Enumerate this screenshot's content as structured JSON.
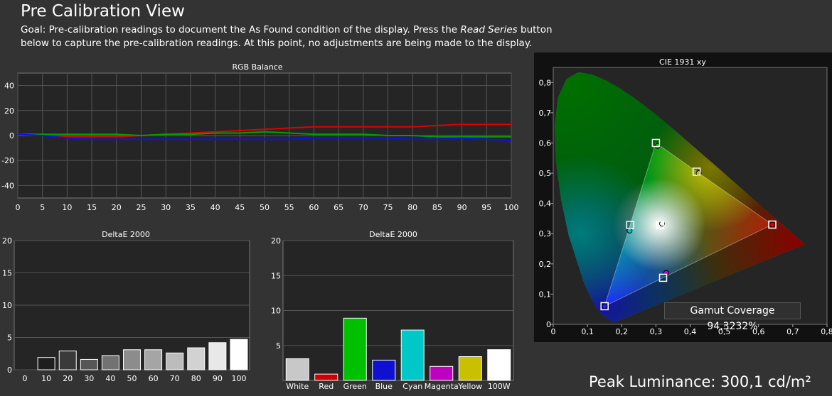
{
  "header": {
    "title": "Pre Calibration View",
    "goal_prefix": "Goal: Pre-calibration readings to document the As Found condition of the display. Press the ",
    "goal_button_name": "Read Series",
    "goal_suffix": " button below to capture the pre-calibration readings. At this point, no adjustments are being made to the display."
  },
  "colors": {
    "background": "#333333",
    "plot_bg": "#252525",
    "grid": "#555555",
    "red": "#e00000",
    "green": "#00a000",
    "blue": "#1010ee"
  },
  "chart_data": [
    {
      "id": "rgb",
      "type": "line",
      "title": "RGB Balance",
      "x": [
        0,
        5,
        10,
        15,
        20,
        25,
        30,
        35,
        40,
        45,
        50,
        55,
        60,
        65,
        70,
        75,
        80,
        85,
        90,
        95,
        100
      ],
      "xticks": [
        "0",
        "5",
        "10",
        "15",
        "20",
        "25",
        "30",
        "35",
        "40",
        "45",
        "50",
        "55",
        "60",
        "65",
        "70",
        "75",
        "80",
        "85",
        "90",
        "95",
        "100"
      ],
      "yticks": [
        40,
        20,
        0,
        -20,
        -40
      ],
      "ylim": [
        -50,
        50
      ],
      "series": [
        {
          "color": "#e00000",
          "values": [
            1,
            0,
            -1,
            -1,
            -1,
            0,
            1,
            2,
            3,
            4,
            5,
            6,
            7,
            7,
            7,
            7,
            7,
            8,
            9,
            9,
            9
          ]
        },
        {
          "color": "#00a000",
          "values": [
            1,
            1,
            1,
            1,
            1,
            0,
            1,
            1,
            2,
            2,
            3,
            2,
            1,
            1,
            1,
            0,
            0,
            -1,
            -1,
            -1,
            -1
          ]
        },
        {
          "color": "#1010ee",
          "values": [
            1,
            0,
            -2,
            -3,
            -3,
            -3,
            -3,
            -3,
            -3,
            -3,
            -3,
            -3,
            -2,
            -2,
            -2,
            -2,
            -3,
            -3,
            -2,
            -3,
            -4
          ]
        }
      ]
    },
    {
      "id": "de_gray",
      "type": "bar",
      "title": "DeltaE 2000",
      "categories": [
        "0",
        "10",
        "20",
        "30",
        "40",
        "50",
        "60",
        "70",
        "80",
        "90",
        "100"
      ],
      "values": [
        0,
        1.9,
        2.9,
        1.6,
        2.2,
        3.1,
        3.1,
        2.6,
        3.4,
        4.2,
        4.7
      ],
      "bar_colors": [
        "#000000",
        "#1e1e1e",
        "#3a3a3a",
        "#565656",
        "#727272",
        "#8c8c8c",
        "#a5a5a5",
        "#bcbcbc",
        "#d2d2d2",
        "#e8e8e8",
        "#ffffff"
      ],
      "yticks": [
        20,
        15,
        10,
        5,
        0
      ],
      "ylim": [
        0,
        20
      ]
    },
    {
      "id": "de_color",
      "type": "bar",
      "title": "DeltaE 2000",
      "categories": [
        "White",
        "Red",
        "Green",
        "Blue",
        "Cyan",
        "Magenta",
        "Yellow",
        "100W"
      ],
      "values": [
        3.1,
        0.9,
        8.9,
        2.9,
        7.2,
        2.0,
        3.4,
        4.4
      ],
      "bar_colors": [
        "#c8c8c8",
        "#d00000",
        "#00c000",
        "#1010d0",
        "#00c8c8",
        "#c000c0",
        "#c8c000",
        "#ffffff"
      ],
      "yticks": [
        20,
        15,
        10,
        5
      ],
      "ylim": [
        0,
        20
      ]
    },
    {
      "id": "cie",
      "type": "scatter",
      "title": "CIE 1931 xy",
      "xticks": [
        "0",
        "0,1",
        "0,2",
        "0,3",
        "0,4",
        "0,5",
        "0,6",
        "0,7",
        "0,8"
      ],
      "yticks": [
        "0",
        "0,1",
        "0,2",
        "0,3",
        "0,4",
        "0,5",
        "0,6",
        "0,7",
        "0,8"
      ],
      "xlim": [
        0,
        0.8
      ],
      "ylim": [
        0,
        0.85
      ],
      "targets": [
        {
          "name": "red",
          "x": 0.64,
          "y": 0.33
        },
        {
          "name": "green",
          "x": 0.3,
          "y": 0.6
        },
        {
          "name": "blue",
          "x": 0.15,
          "y": 0.06
        },
        {
          "name": "cyan",
          "x": 0.225,
          "y": 0.329
        },
        {
          "name": "magenta",
          "x": 0.321,
          "y": 0.154
        },
        {
          "name": "yellow",
          "x": 0.419,
          "y": 0.505
        },
        {
          "name": "white",
          "x": 0.3127,
          "y": 0.329
        }
      ],
      "measured": [
        {
          "name": "red",
          "x": 0.64,
          "y": 0.33,
          "color": "#e00000"
        },
        {
          "name": "green",
          "x": 0.305,
          "y": 0.59,
          "color": "#00c000"
        },
        {
          "name": "blue",
          "x": 0.15,
          "y": 0.06,
          "color": "#2020ff"
        },
        {
          "name": "cyan",
          "x": 0.223,
          "y": 0.31,
          "color": "#00c0c0"
        },
        {
          "name": "magenta",
          "x": 0.33,
          "y": 0.17,
          "color": "#c000c0"
        },
        {
          "name": "yellow",
          "x": 0.425,
          "y": 0.5,
          "color": "#c0c000"
        },
        {
          "name": "white",
          "x": 0.318,
          "y": 0.333,
          "color": "#ffffff"
        }
      ]
    }
  ],
  "gamut_coverage": "Gamut Coverage 94,3232%",
  "peak_luminance": "Peak Luminance: 300,1 cd/m²"
}
